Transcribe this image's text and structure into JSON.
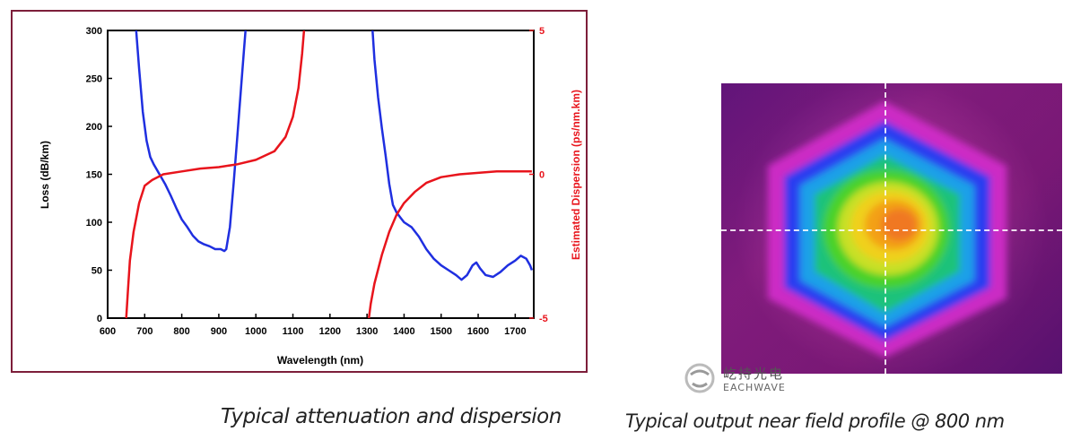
{
  "chart_data": {
    "type": "line",
    "xlabel": "Wavelength (nm)",
    "ylabel_left": "Loss (dB/km)",
    "ylabel_right": "Estimated Dispersion (ps/nm.km)",
    "xlim": [
      600,
      1750
    ],
    "ylim_left": [
      0,
      300
    ],
    "ylim_right": [
      -5,
      5
    ],
    "x_ticks": [
      600,
      700,
      800,
      900,
      1000,
      1100,
      1200,
      1300,
      1400,
      1500,
      1600,
      1700
    ],
    "y_ticks_left": [
      0,
      50,
      100,
      150,
      200,
      250,
      300
    ],
    "y_ticks_right": [
      -5,
      0,
      5
    ],
    "series": [
      {
        "name": "Loss",
        "axis": "left",
        "color": "#1f2fe0",
        "segments": [
          [
            [
              677,
              300
            ],
            [
              685,
              260
            ],
            [
              695,
              215
            ],
            [
              705,
              185
            ],
            [
              715,
              168
            ],
            [
              725,
              160
            ],
            [
              740,
              150
            ],
            [
              755,
              140
            ],
            [
              770,
              128
            ],
            [
              785,
              115
            ],
            [
              800,
              103
            ],
            [
              815,
              95
            ],
            [
              830,
              86
            ],
            [
              845,
              80
            ],
            [
              860,
              77
            ],
            [
              875,
              75
            ],
            [
              890,
              72
            ],
            [
              905,
              72
            ],
            [
              915,
              70
            ],
            [
              920,
              72
            ],
            [
              930,
              95
            ],
            [
              940,
              140
            ],
            [
              950,
              190
            ],
            [
              960,
              240
            ],
            [
              968,
              280
            ],
            [
              972,
              300
            ]
          ],
          [
            [
              1315,
              300
            ],
            [
              1320,
              270
            ],
            [
              1330,
              230
            ],
            [
              1340,
              198
            ],
            [
              1350,
              170
            ],
            [
              1360,
              140
            ],
            [
              1370,
              118
            ],
            [
              1380,
              110
            ],
            [
              1390,
              105
            ],
            [
              1400,
              100
            ],
            [
              1420,
              95
            ],
            [
              1440,
              85
            ],
            [
              1460,
              72
            ],
            [
              1480,
              62
            ],
            [
              1500,
              55
            ],
            [
              1520,
              50
            ],
            [
              1540,
              45
            ],
            [
              1555,
              40
            ],
            [
              1570,
              45
            ],
            [
              1585,
              55
            ],
            [
              1595,
              58
            ],
            [
              1605,
              52
            ],
            [
              1620,
              45
            ],
            [
              1640,
              43
            ],
            [
              1660,
              48
            ],
            [
              1680,
              55
            ],
            [
              1700,
              60
            ],
            [
              1715,
              65
            ],
            [
              1730,
              62
            ],
            [
              1740,
              55
            ],
            [
              1745,
              50
            ]
          ]
        ]
      },
      {
        "name": "Estimated Dispersion",
        "axis": "right",
        "color": "#e8141c",
        "segments": [
          [
            [
              650,
              -5
            ],
            [
              655,
              -4
            ],
            [
              660,
              -3
            ],
            [
              670,
              -2
            ],
            [
              685,
              -1
            ],
            [
              700,
              -0.4
            ],
            [
              720,
              -0.2
            ],
            [
              750,
              0
            ],
            [
              800,
              0.1
            ],
            [
              850,
              0.2
            ],
            [
              900,
              0.25
            ],
            [
              950,
              0.35
            ],
            [
              1000,
              0.5
            ],
            [
              1050,
              0.8
            ],
            [
              1080,
              1.3
            ],
            [
              1100,
              2
            ],
            [
              1115,
              3
            ],
            [
              1125,
              4.2
            ],
            [
              1130,
              5
            ]
          ],
          [
            [
              1305,
              -5
            ],
            [
              1310,
              -4.5
            ],
            [
              1320,
              -3.8
            ],
            [
              1340,
              -2.8
            ],
            [
              1360,
              -2
            ],
            [
              1380,
              -1.4
            ],
            [
              1400,
              -1
            ],
            [
              1430,
              -0.6
            ],
            [
              1460,
              -0.3
            ],
            [
              1500,
              -0.1
            ],
            [
              1550,
              0
            ],
            [
              1600,
              0.05
            ],
            [
              1650,
              0.1
            ],
            [
              1700,
              0.1
            ],
            [
              1745,
              0.1
            ]
          ]
        ]
      }
    ]
  },
  "captions": {
    "left": "Typical attenuation and dispersion",
    "right": "Typical output near field profile @ 800 nm"
  },
  "logo": {
    "name_cn": "屹持光电",
    "name_en": "EACHWAVE"
  },
  "colors": {
    "frame": "#7d1e3a",
    "loss_line": "#1f2fe0",
    "dispersion_line": "#e8141c"
  }
}
